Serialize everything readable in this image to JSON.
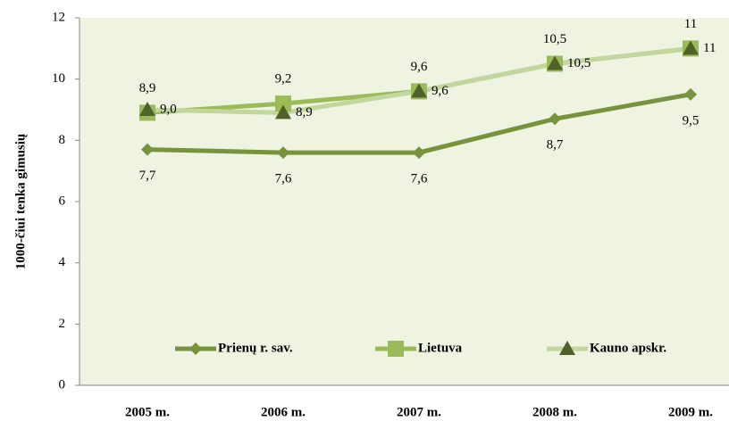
{
  "chart_data": {
    "type": "line",
    "y_label": "1000-čiui tenka gimusių",
    "categories": [
      "2005 m.",
      "2006 m.",
      "2007 m.",
      "2008 m.",
      "2009 m."
    ],
    "series": [
      {
        "name": "Prienų r. sav.",
        "color": "#77933c",
        "marker": "diamond",
        "values": [
          7.7,
          7.6,
          7.6,
          8.7,
          9.5
        ],
        "value_labels": [
          "7,7",
          "7,6",
          "7,6",
          "8,7",
          "9,5"
        ]
      },
      {
        "name": "Lietuva",
        "color": "#9bbb59",
        "marker": "square",
        "values": [
          8.9,
          9.2,
          9.6,
          10.5,
          11
        ],
        "value_labels": [
          "8,9",
          "9,2",
          "9,6",
          "10,5",
          "11"
        ]
      },
      {
        "name": "Kauno apskr.",
        "color": "#c3d69b",
        "marker_color": "#4f6228",
        "marker": "triangle",
        "values": [
          9.0,
          8.9,
          9.6,
          10.5,
          11
        ],
        "value_labels": [
          "9,0",
          "8,9",
          "9,6",
          "10,5",
          "11"
        ]
      }
    ],
    "ylim": [
      0,
      12
    ],
    "yticks": [
      0,
      2,
      4,
      6,
      8,
      10,
      12
    ]
  }
}
